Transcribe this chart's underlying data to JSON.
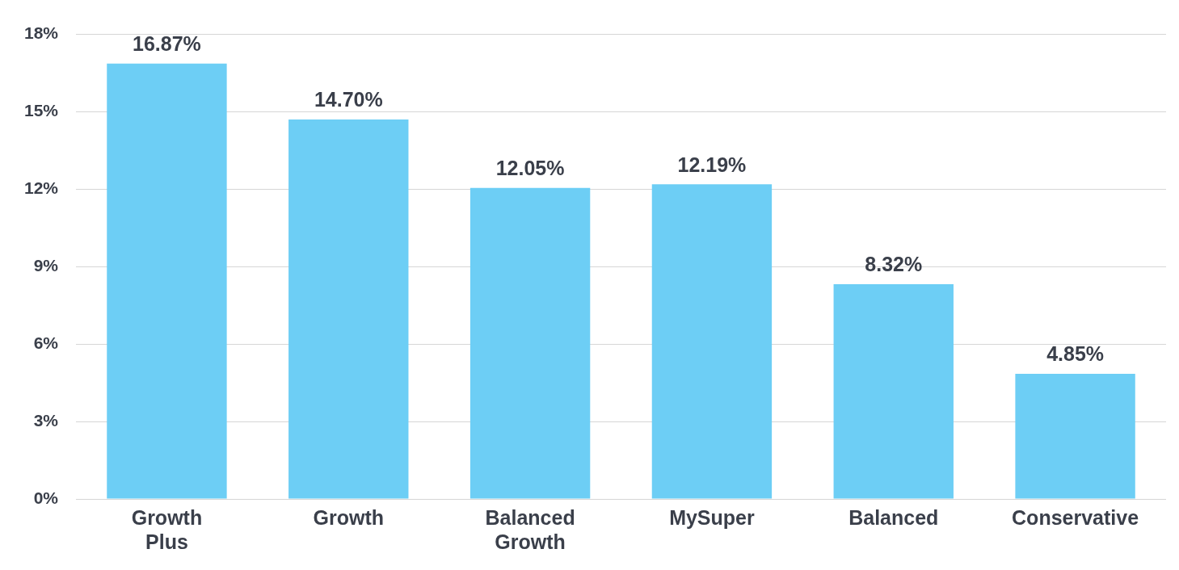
{
  "chart_data": {
    "type": "bar",
    "categories": [
      "Growth Plus",
      "Growth",
      "Balanced Growth",
      "MySuper",
      "Balanced",
      "Conservative"
    ],
    "values": [
      16.87,
      14.7,
      12.05,
      12.19,
      8.32,
      4.85
    ],
    "value_labels": [
      "16.87%",
      "14.70%",
      "12.05%",
      "12.19%",
      "8.32%",
      "4.85%"
    ],
    "color": "#6dcef5",
    "ylim": [
      0,
      18
    ],
    "yticks": [
      {
        "value": 0,
        "label": "0%"
      },
      {
        "value": 3,
        "label": "3%"
      },
      {
        "value": 6,
        "label": "6%"
      },
      {
        "value": 9,
        "label": "9%"
      },
      {
        "value": 12,
        "label": "12%"
      },
      {
        "value": 15,
        "label": "15%"
      },
      {
        "value": 18,
        "label": "18%"
      }
    ],
    "grid": "y"
  }
}
